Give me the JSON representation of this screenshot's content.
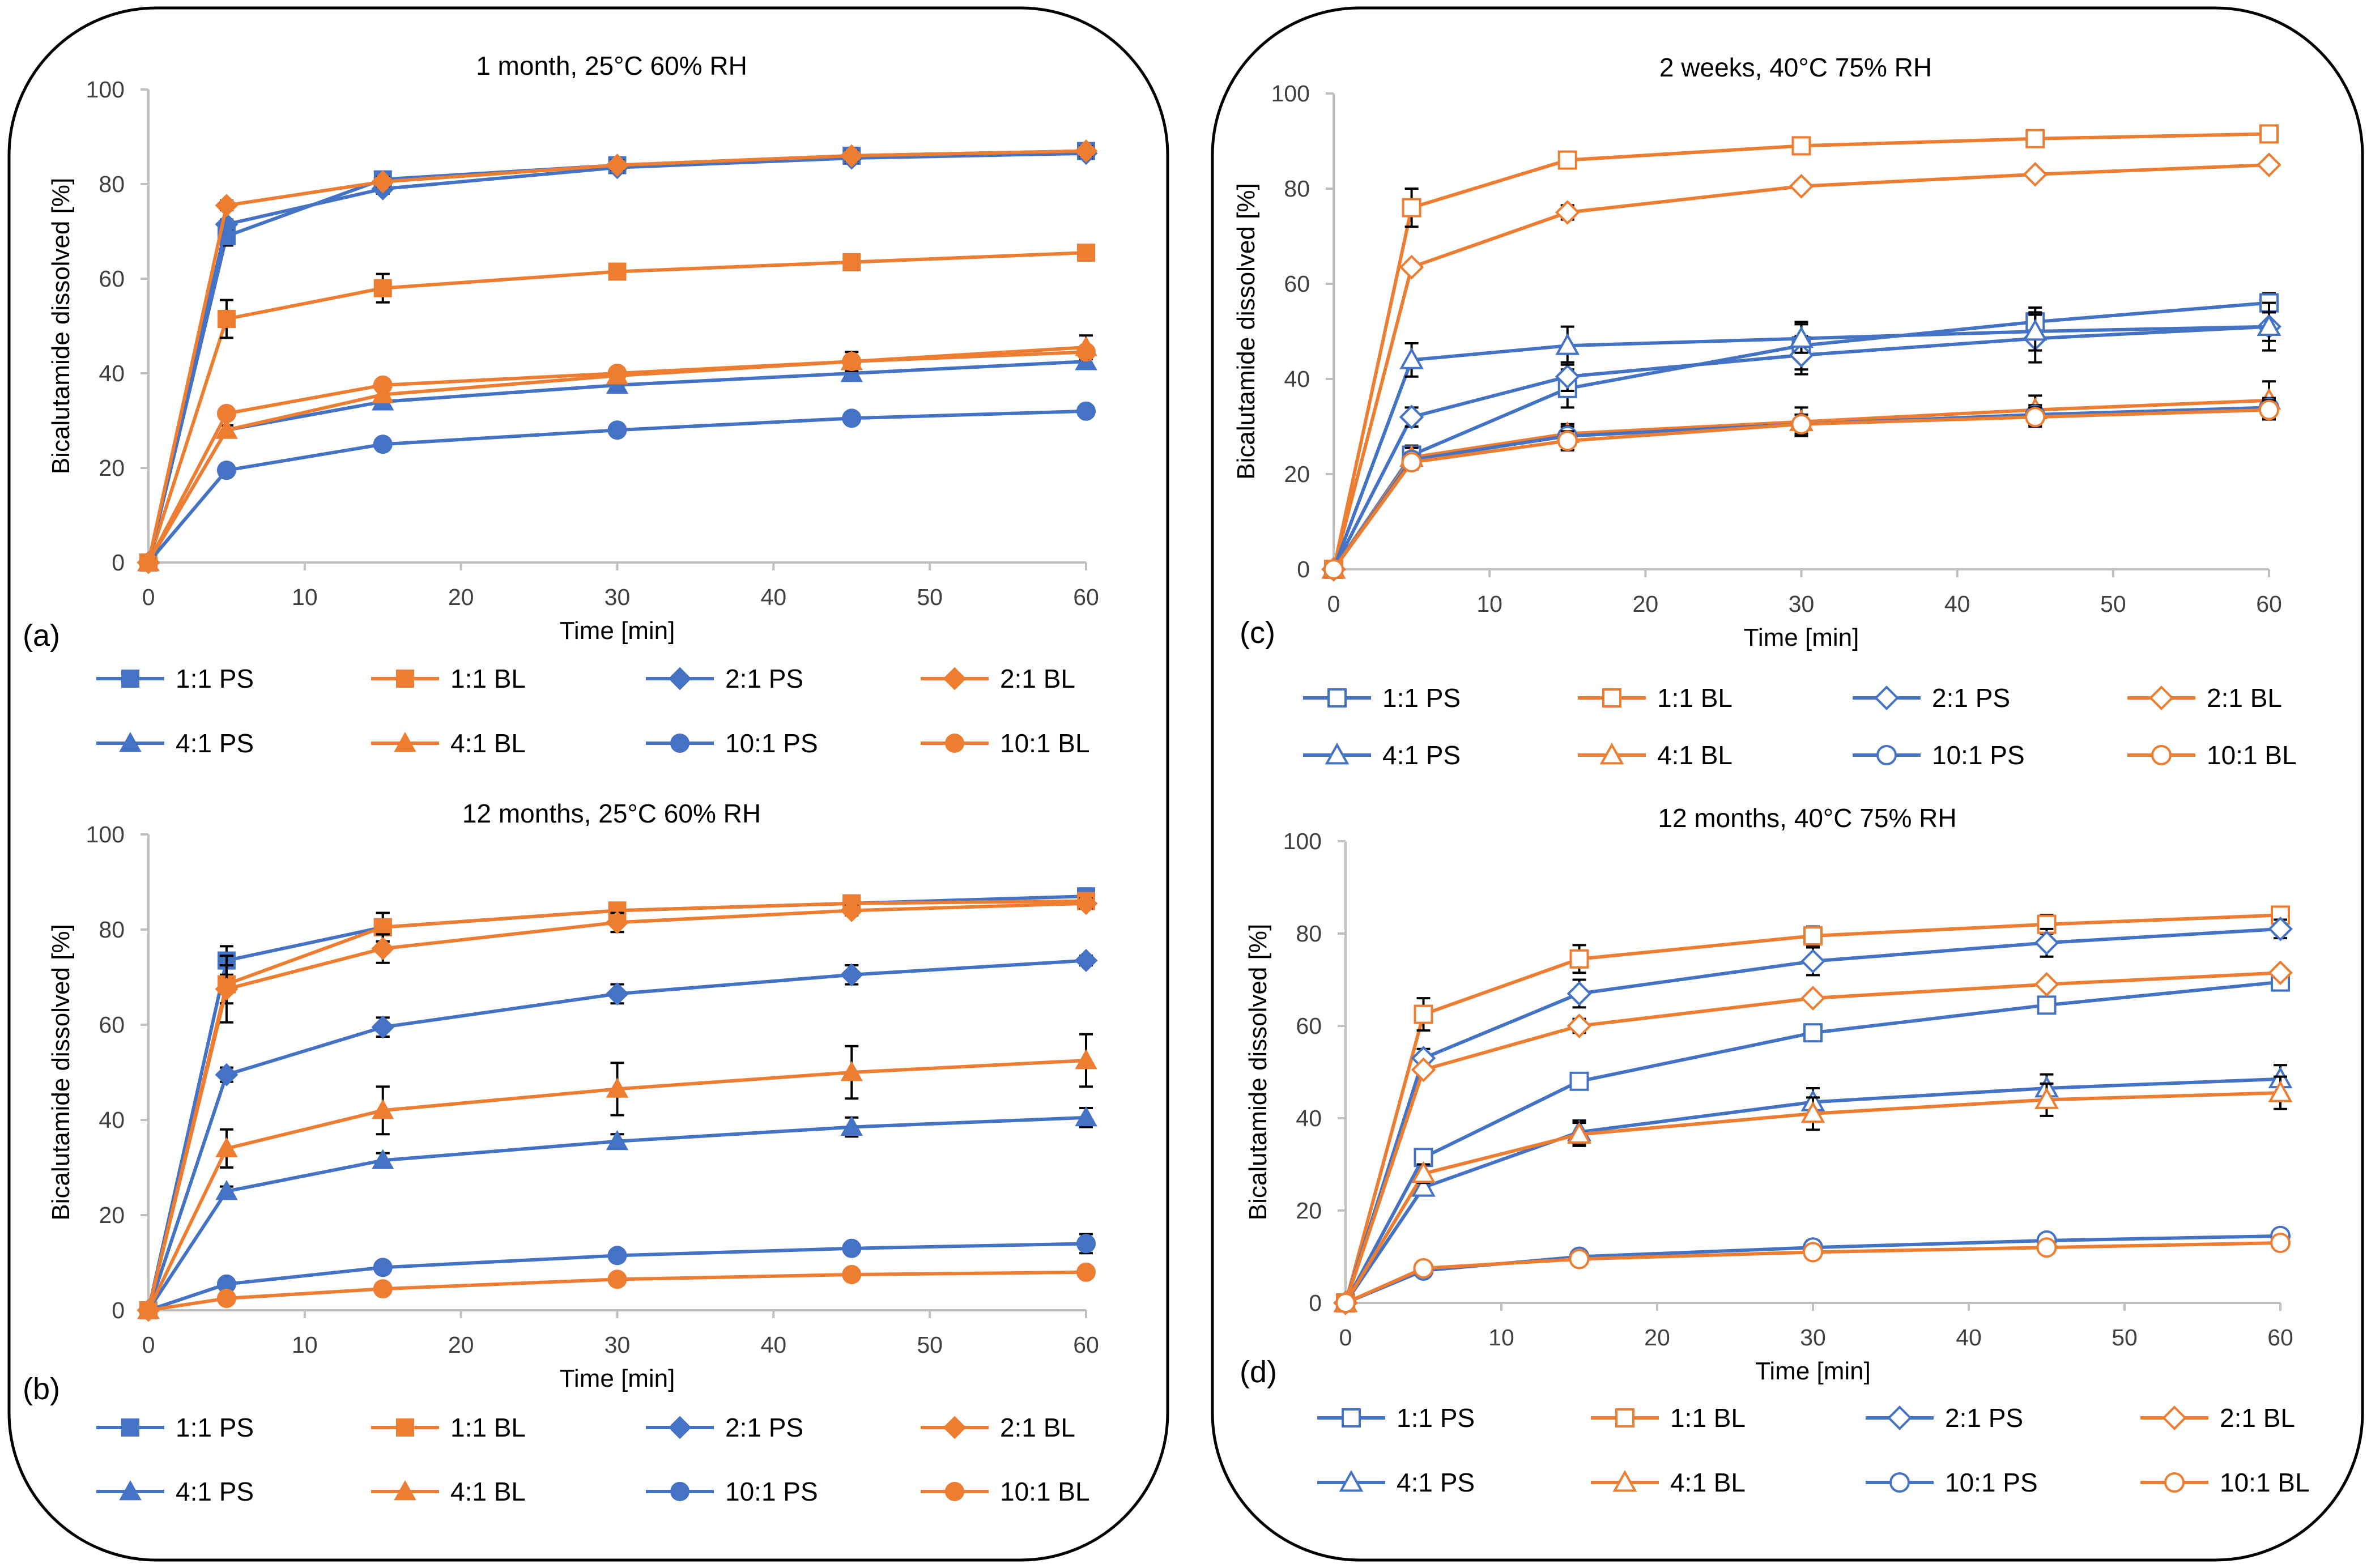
{
  "colors": {
    "ps": "#4472c4",
    "bl": "#ed7d31",
    "axis": "#bfbfbf",
    "text": "#404040"
  },
  "chart_data": [
    {
      "id": "a",
      "type": "line",
      "panel_label": "(a)",
      "title": "1 month, 25°C 60% RH",
      "xlabel": "Time [min]",
      "ylabel": "Bicalutamide dissolved [%]",
      "xlim": [
        0,
        60
      ],
      "ylim": [
        0,
        100
      ],
      "xticks": [
        "0",
        "10",
        "20",
        "30",
        "40",
        "50",
        "60"
      ],
      "yticks": [
        "0",
        "20",
        "40",
        "60",
        "80",
        "100"
      ],
      "marker_fill": "filled",
      "x": [
        0,
        5,
        15,
        30,
        45,
        60
      ],
      "series": [
        {
          "name": "1:1 PS",
          "color": "#4472c4",
          "marker": "square",
          "values": [
            0,
            69,
            81,
            84,
            86,
            87
          ],
          "errors": [
            0,
            2,
            1,
            1,
            1,
            1
          ]
        },
        {
          "name": "1:1 BL",
          "color": "#ed7d31",
          "marker": "square",
          "values": [
            0,
            51.5,
            58,
            61.5,
            63.5,
            65.5
          ],
          "errors": [
            0,
            4,
            3,
            1,
            1,
            1
          ]
        },
        {
          "name": "2:1 PS",
          "color": "#4472c4",
          "marker": "diamond",
          "values": [
            0,
            71.5,
            79,
            83.5,
            85.5,
            86.5
          ],
          "errors": [
            0,
            1,
            1,
            1,
            1,
            1
          ]
        },
        {
          "name": "2:1 BL",
          "color": "#ed7d31",
          "marker": "diamond",
          "values": [
            0,
            75.5,
            80.5,
            84,
            86,
            87
          ],
          "errors": [
            0,
            1,
            1,
            1,
            1,
            1
          ]
        },
        {
          "name": "4:1 PS",
          "color": "#4472c4",
          "marker": "triangle",
          "values": [
            0,
            28,
            34,
            37.5,
            40,
            42.5
          ],
          "errors": [
            0,
            1,
            1,
            1,
            1,
            1
          ]
        },
        {
          "name": "4:1 BL",
          "color": "#ed7d31",
          "marker": "triangle",
          "values": [
            0,
            28,
            35.5,
            39.5,
            42.5,
            45.5
          ],
          "errors": [
            0,
            1,
            1,
            1,
            2,
            2.5
          ]
        },
        {
          "name": "10:1 PS",
          "color": "#4472c4",
          "marker": "circle",
          "values": [
            0,
            19.5,
            25,
            28,
            30.5,
            32
          ],
          "errors": [
            0,
            1,
            1,
            1,
            1,
            1
          ]
        },
        {
          "name": "10:1 BL",
          "color": "#ed7d31",
          "marker": "circle",
          "values": [
            0,
            31.5,
            37.5,
            40,
            42.5,
            44.5
          ],
          "errors": [
            0,
            1,
            1,
            1,
            1,
            1
          ]
        }
      ]
    },
    {
      "id": "b",
      "type": "line",
      "panel_label": "(b)",
      "title": "12 months, 25°C 60% RH",
      "xlabel": "Time [min]",
      "ylabel": "Bicalutamide dissolved [%]",
      "xlim": [
        0,
        60
      ],
      "ylim": [
        0,
        100
      ],
      "xticks": [
        "0",
        "10",
        "20",
        "30",
        "40",
        "50",
        "60"
      ],
      "yticks": [
        "0",
        "20",
        "40",
        "60",
        "80",
        "100"
      ],
      "marker_fill": "filled",
      "x": [
        0,
        5,
        15,
        30,
        45,
        60
      ],
      "series": [
        {
          "name": "1:1 PS",
          "color": "#4472c4",
          "marker": "square",
          "values": [
            0,
            73.5,
            80.5,
            84,
            85.5,
            87
          ],
          "errors": [
            0,
            3,
            3,
            1,
            1,
            1
          ]
        },
        {
          "name": "1:1 BL",
          "color": "#ed7d31",
          "marker": "square",
          "values": [
            0,
            68.5,
            80.5,
            84,
            85.5,
            86
          ],
          "errors": [
            0,
            4,
            3,
            1,
            1,
            1
          ]
        },
        {
          "name": "2:1 PS",
          "color": "#4472c4",
          "marker": "diamond",
          "values": [
            0,
            49.5,
            59.5,
            66.5,
            70.5,
            73.5
          ],
          "errors": [
            0,
            1.5,
            2,
            2,
            2,
            1
          ]
        },
        {
          "name": "2:1 BL",
          "color": "#ed7d31",
          "marker": "diamond",
          "values": [
            0,
            67.5,
            76,
            81.5,
            84,
            85.5
          ],
          "errors": [
            0,
            7,
            3,
            2,
            1,
            1
          ]
        },
        {
          "name": "4:1 PS",
          "color": "#4472c4",
          "marker": "triangle",
          "values": [
            0,
            25,
            31.5,
            35.5,
            38.5,
            40.5
          ],
          "errors": [
            0,
            1,
            1.5,
            1.5,
            2,
            2
          ]
        },
        {
          "name": "4:1 BL",
          "color": "#ed7d31",
          "marker": "triangle",
          "values": [
            0,
            34,
            42,
            46.5,
            50,
            52.5
          ],
          "errors": [
            0,
            4,
            5,
            5.5,
            5.5,
            5.5
          ]
        },
        {
          "name": "10:1 PS",
          "color": "#4472c4",
          "marker": "circle",
          "values": [
            0,
            5.5,
            9,
            11.5,
            13,
            14
          ],
          "errors": [
            0,
            0.5,
            1,
            1,
            1,
            2
          ]
        },
        {
          "name": "10:1 BL",
          "color": "#ed7d31",
          "marker": "circle",
          "values": [
            0,
            2.5,
            4.5,
            6.5,
            7.5,
            8
          ],
          "errors": [
            0,
            0.5,
            0.5,
            0.5,
            0.5,
            0.5
          ]
        }
      ]
    },
    {
      "id": "c",
      "type": "line",
      "panel_label": "(c)",
      "title": "2 weeks, 40°C 75% RH",
      "xlabel": "Time [min]",
      "ylabel": "Bicalutamide dissolved [%]",
      "xlim": [
        0,
        60
      ],
      "ylim": [
        0,
        100
      ],
      "xticks": [
        "0",
        "10",
        "20",
        "30",
        "40",
        "50",
        "60"
      ],
      "yticks": [
        "0",
        "20",
        "40",
        "60",
        "80",
        "100"
      ],
      "marker_fill": "open",
      "x": [
        0,
        5,
        15,
        30,
        45,
        60
      ],
      "series": [
        {
          "name": "1:1 PS",
          "color": "#4472c4",
          "marker": "square",
          "values": [
            0,
            24,
            38,
            47,
            52,
            56
          ],
          "errors": [
            0,
            2,
            4,
            5,
            3,
            2
          ]
        },
        {
          "name": "1:1 BL",
          "color": "#ed7d31",
          "marker": "square",
          "values": [
            0,
            76,
            86,
            89,
            90.5,
            91.5
          ],
          "errors": [
            0,
            4,
            1.5,
            1.5,
            1.5,
            1
          ]
        },
        {
          "name": "2:1 PS",
          "color": "#4472c4",
          "marker": "diamond",
          "values": [
            0,
            32,
            40.5,
            45,
            48.5,
            51
          ],
          "errors": [
            0,
            2,
            3,
            4,
            5,
            3
          ]
        },
        {
          "name": "2:1 BL",
          "color": "#ed7d31",
          "marker": "diamond",
          "values": [
            0,
            63.5,
            75,
            80.5,
            83,
            85
          ],
          "errors": [
            0,
            1,
            1.5,
            1,
            1,
            0.5
          ]
        },
        {
          "name": "4:1 PS",
          "color": "#4472c4",
          "marker": "triangle",
          "values": [
            0,
            44,
            47,
            48.5,
            50,
            51
          ],
          "errors": [
            0,
            3.5,
            4,
            3,
            4,
            5
          ]
        },
        {
          "name": "4:1 BL",
          "color": "#ed7d31",
          "marker": "triangle",
          "values": [
            0,
            23.5,
            28.5,
            31,
            33.5,
            35.5
          ],
          "errors": [
            0,
            2,
            2,
            3,
            3,
            4
          ]
        },
        {
          "name": "10:1 PS",
          "color": "#4472c4",
          "marker": "circle",
          "values": [
            0,
            23,
            28,
            30.5,
            32.5,
            34
          ],
          "errors": [
            0,
            1.5,
            2,
            2,
            2,
            2
          ]
        },
        {
          "name": "10:1 BL",
          "color": "#ed7d31",
          "marker": "circle",
          "values": [
            0,
            22.5,
            27,
            30.5,
            32,
            33.5
          ],
          "errors": [
            0,
            1.5,
            2,
            2,
            2,
            2
          ]
        }
      ]
    },
    {
      "id": "d",
      "type": "line",
      "panel_label": "(d)",
      "title": "12 months, 40°C 75% RH",
      "xlabel": "Time [min]",
      "ylabel": "Bicalutamide dissolved [%]",
      "xlim": [
        0,
        60
      ],
      "ylim": [
        0,
        100
      ],
      "xticks": [
        "0",
        "10",
        "20",
        "30",
        "40",
        "50",
        "60"
      ],
      "yticks": [
        "0",
        "20",
        "40",
        "60",
        "80",
        "100"
      ],
      "marker_fill": "open",
      "x": [
        0,
        5,
        15,
        30,
        45,
        60
      ],
      "series": [
        {
          "name": "1:1 PS",
          "color": "#4472c4",
          "marker": "square",
          "values": [
            0,
            31.5,
            48,
            58.5,
            64.5,
            69.5
          ],
          "errors": [
            0,
            1.5,
            1.5,
            1.5,
            1.5,
            1.5
          ]
        },
        {
          "name": "1:1 BL",
          "color": "#ed7d31",
          "marker": "square",
          "values": [
            0,
            62.5,
            74.5,
            79.5,
            82,
            84
          ],
          "errors": [
            0,
            3.5,
            3,
            2,
            2,
            1
          ]
        },
        {
          "name": "2:1 PS",
          "color": "#4472c4",
          "marker": "diamond",
          "values": [
            0,
            53,
            67,
            74,
            78,
            81
          ],
          "errors": [
            0,
            2,
            3,
            3,
            3,
            2
          ]
        },
        {
          "name": "2:1 BL",
          "color": "#ed7d31",
          "marker": "diamond",
          "values": [
            0,
            50.5,
            60,
            66,
            69,
            71.5
          ],
          "errors": [
            0,
            1,
            1.5,
            1,
            1,
            1
          ]
        },
        {
          "name": "4:1 PS",
          "color": "#4472c4",
          "marker": "triangle",
          "values": [
            0,
            25,
            37,
            43.5,
            46.5,
            48.5
          ],
          "errors": [
            0,
            1.5,
            2.5,
            3,
            3,
            3
          ]
        },
        {
          "name": "4:1 BL",
          "color": "#ed7d31",
          "marker": "triangle",
          "values": [
            0,
            28,
            36.5,
            41,
            44,
            45.5
          ],
          "errors": [
            0,
            2,
            2.5,
            3.5,
            3.5,
            3.5
          ]
        },
        {
          "name": "10:1 PS",
          "color": "#4472c4",
          "marker": "circle",
          "values": [
            0,
            7,
            10,
            12,
            13.5,
            14.5
          ],
          "errors": [
            0,
            1,
            1,
            1.5,
            1,
            1
          ]
        },
        {
          "name": "10:1 BL",
          "color": "#ed7d31",
          "marker": "circle",
          "values": [
            0,
            7.5,
            9.5,
            11,
            12,
            13
          ],
          "errors": [
            0,
            1,
            1,
            1,
            1,
            1
          ]
        }
      ]
    }
  ]
}
